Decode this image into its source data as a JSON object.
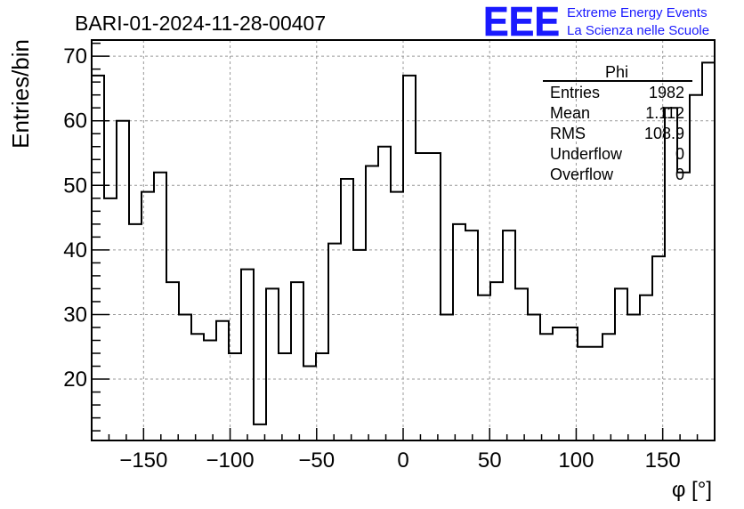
{
  "chart_data": {
    "type": "histogram",
    "title": "BARI-01-2024-11-28-00407",
    "xlabel": "φ [°]",
    "ylabel": "Entries/bin",
    "xlim": [
      -180,
      180
    ],
    "ylim": [
      10.5,
      72.5
    ],
    "x_ticks": [
      -150,
      -100,
      -50,
      0,
      50,
      100,
      150
    ],
    "x_tick_labels": [
      "−150",
      "−100",
      "−50",
      "0",
      "50",
      "100",
      "150"
    ],
    "y_ticks": [
      20,
      30,
      40,
      50,
      60,
      70
    ],
    "y_tick_labels": [
      "20",
      "30",
      "40",
      "50",
      "60",
      "70"
    ],
    "grid": true,
    "bin_width": 7.2,
    "bin_edges_start": -180,
    "values": [
      67,
      48,
      60,
      44,
      49,
      52,
      35,
      30,
      27,
      26,
      29,
      24,
      37,
      13,
      34,
      24,
      35,
      22,
      24,
      41,
      51,
      40,
      53,
      56,
      49,
      67,
      55,
      55,
      30,
      44,
      43,
      33,
      35,
      43,
      34,
      30,
      27,
      28,
      28,
      25,
      25,
      27,
      34,
      30,
      33,
      39,
      62,
      52,
      64,
      69
    ],
    "stats_box": {
      "title": "Phi",
      "rows": [
        {
          "label": "Entries",
          "value": "1982"
        },
        {
          "label": "Mean",
          "value": "1.112"
        },
        {
          "label": "RMS",
          "value": "108.9"
        },
        {
          "label": "Underflow",
          "value": "0"
        },
        {
          "label": "Overflow",
          "value": "0"
        }
      ]
    },
    "logo": {
      "mark": "EEE",
      "line1": "Extreme Energy Events",
      "line2": "La Scienza nelle Scuole",
      "color": "#1a1aff"
    },
    "line_color": "#000000",
    "grid_color": "#9a9a9a"
  }
}
